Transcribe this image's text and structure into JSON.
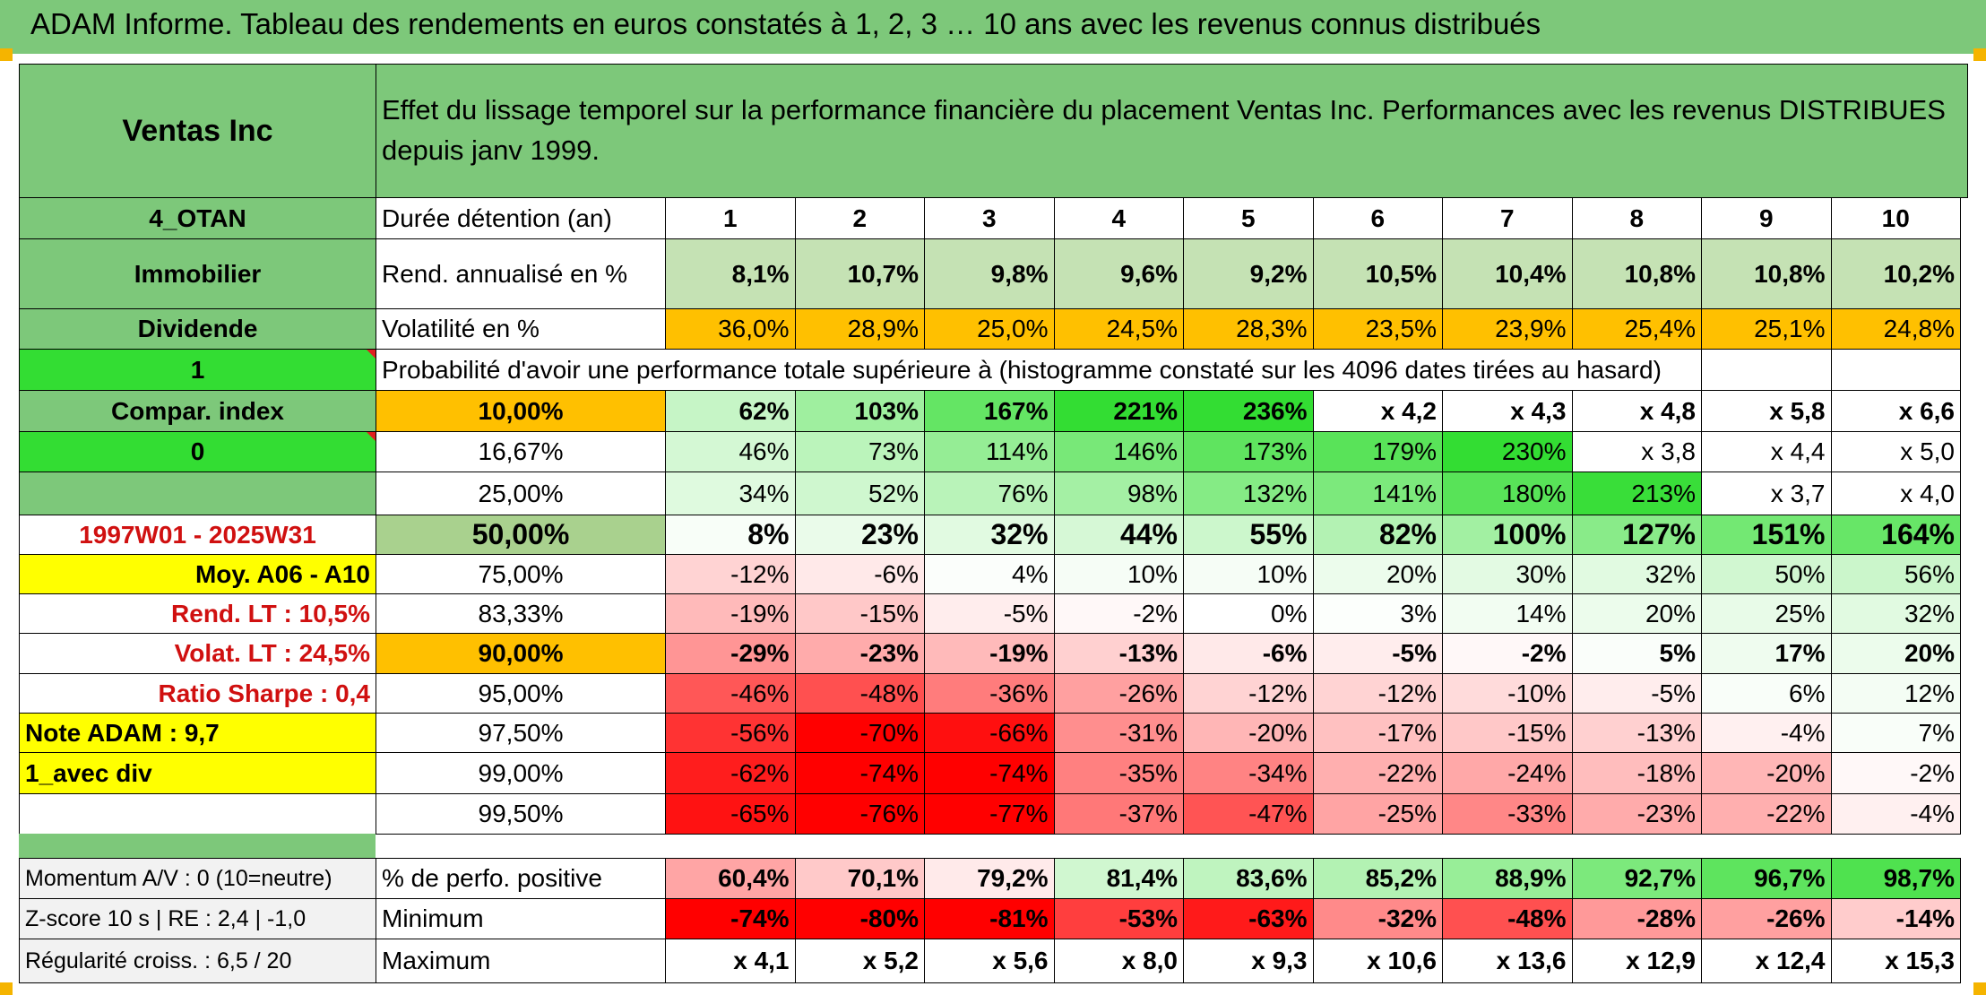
{
  "header": {
    "title": "ADAM Informe. Tableau des rendements en euros constatés à 1, 2, 3 … 10 ans avec les revenus connus distribués"
  },
  "colors": {
    "header_green": "#7dc87a",
    "bright_green": "#33dd33",
    "yellow": "#ffff00",
    "orange": "#ffc000",
    "light_green": "#c5e2b4",
    "red": "#ff0000",
    "pink": "#ffc7c7"
  },
  "sidebar": {
    "company": "Ventas Inc",
    "code": "4_OTAN",
    "sector": "Immobilier",
    "type": "Dividende",
    "flag1": "1",
    "compar_index": "Compar. index",
    "flag0": "0",
    "period": "1997W01 - 2025W31",
    "moy": "Moy. A06 - A10",
    "rend_lt": "Rend. LT :   10,5%",
    "volat_lt": "Volat. LT :   24,5%",
    "sharpe": "Ratio Sharpe :   0,4",
    "note": "Note ADAM : 9,7",
    "avec_div": "1_avec div",
    "momentum": "Momentum A/V : 0 (10=neutre)",
    "zscore": "Z-score 10 s | RE : 2,4 | -1,0",
    "regularite": "Régularité croiss. : 6,5 / 20"
  },
  "description": "Effet du lissage temporel sur la performance financière du placement Ventas Inc. Performances avec les revenus DISTRIBUES depuis janv 1999.",
  "duration_label": "Durée détention (an)",
  "years": [
    "1",
    "2",
    "3",
    "4",
    "5",
    "6",
    "7",
    "8",
    "9",
    "10"
  ],
  "rend": {
    "label": "Rend. annualisé en %",
    "values": [
      "8,1%",
      "10,7%",
      "9,8%",
      "9,6%",
      "9,2%",
      "10,5%",
      "10,4%",
      "10,8%",
      "10,8%",
      "10,2%"
    ]
  },
  "vol": {
    "label": "Volatilité en %",
    "values": [
      "36,0%",
      "28,9%",
      "25,0%",
      "24,5%",
      "28,3%",
      "23,5%",
      "23,9%",
      "25,4%",
      "25,1%",
      "24,8%"
    ]
  },
  "prob_label": "Probabilité d'avoir une performance totale supérieure à (histogramme constaté sur les 4096 dates tirées au hasard)",
  "prob_rows": [
    {
      "p": "10,00%",
      "values": [
        "62%",
        "103%",
        "167%",
        "221%",
        "236%",
        "x 4,2",
        "x 4,3",
        "x 4,8",
        "x 5,8",
        "x 6,6"
      ]
    },
    {
      "p": "16,67%",
      "values": [
        "46%",
        "73%",
        "114%",
        "146%",
        "173%",
        "179%",
        "230%",
        "x 3,8",
        "x 4,4",
        "x 5,0"
      ]
    },
    {
      "p": "25,00%",
      "values": [
        "34%",
        "52%",
        "76%",
        "98%",
        "132%",
        "141%",
        "180%",
        "213%",
        "x 3,7",
        "x 4,0"
      ]
    },
    {
      "p": "50,00%",
      "values": [
        "8%",
        "23%",
        "32%",
        "44%",
        "55%",
        "82%",
        "100%",
        "127%",
        "151%",
        "164%"
      ]
    },
    {
      "p": "75,00%",
      "values": [
        "-12%",
        "-6%",
        "4%",
        "10%",
        "10%",
        "20%",
        "30%",
        "32%",
        "50%",
        "56%"
      ]
    },
    {
      "p": "83,33%",
      "values": [
        "-19%",
        "-15%",
        "-5%",
        "-2%",
        "0%",
        "3%",
        "14%",
        "20%",
        "25%",
        "32%"
      ]
    },
    {
      "p": "90,00%",
      "values": [
        "-29%",
        "-23%",
        "-19%",
        "-13%",
        "-6%",
        "-5%",
        "-2%",
        "5%",
        "17%",
        "20%"
      ]
    },
    {
      "p": "95,00%",
      "values": [
        "-46%",
        "-48%",
        "-36%",
        "-26%",
        "-12%",
        "-12%",
        "-10%",
        "-5%",
        "6%",
        "12%"
      ]
    },
    {
      "p": "97,50%",
      "values": [
        "-56%",
        "-70%",
        "-66%",
        "-31%",
        "-20%",
        "-17%",
        "-15%",
        "-13%",
        "-4%",
        "7%"
      ]
    },
    {
      "p": "99,00%",
      "values": [
        "-62%",
        "-74%",
        "-74%",
        "-35%",
        "-34%",
        "-22%",
        "-24%",
        "-18%",
        "-20%",
        "-2%"
      ]
    },
    {
      "p": "99,50%",
      "values": [
        "-65%",
        "-76%",
        "-77%",
        "-37%",
        "-47%",
        "-25%",
        "-33%",
        "-23%",
        "-22%",
        "-4%"
      ]
    }
  ],
  "stats": [
    {
      "label": "% de perfo. positive",
      "values": [
        "60,4%",
        "70,1%",
        "79,2%",
        "81,4%",
        "83,6%",
        "85,2%",
        "88,9%",
        "92,7%",
        "96,7%",
        "98,7%"
      ]
    },
    {
      "label": "Minimum",
      "values": [
        "-74%",
        "-80%",
        "-81%",
        "-53%",
        "-63%",
        "-32%",
        "-48%",
        "-28%",
        "-26%",
        "-14%"
      ]
    },
    {
      "label": "Maximum",
      "values": [
        "x 4,1",
        "x 5,2",
        "x 5,6",
        "x 8,0",
        "x 9,3",
        "x 10,6",
        "x 13,6",
        "x 12,9",
        "x 12,4",
        "x 15,3"
      ]
    }
  ]
}
